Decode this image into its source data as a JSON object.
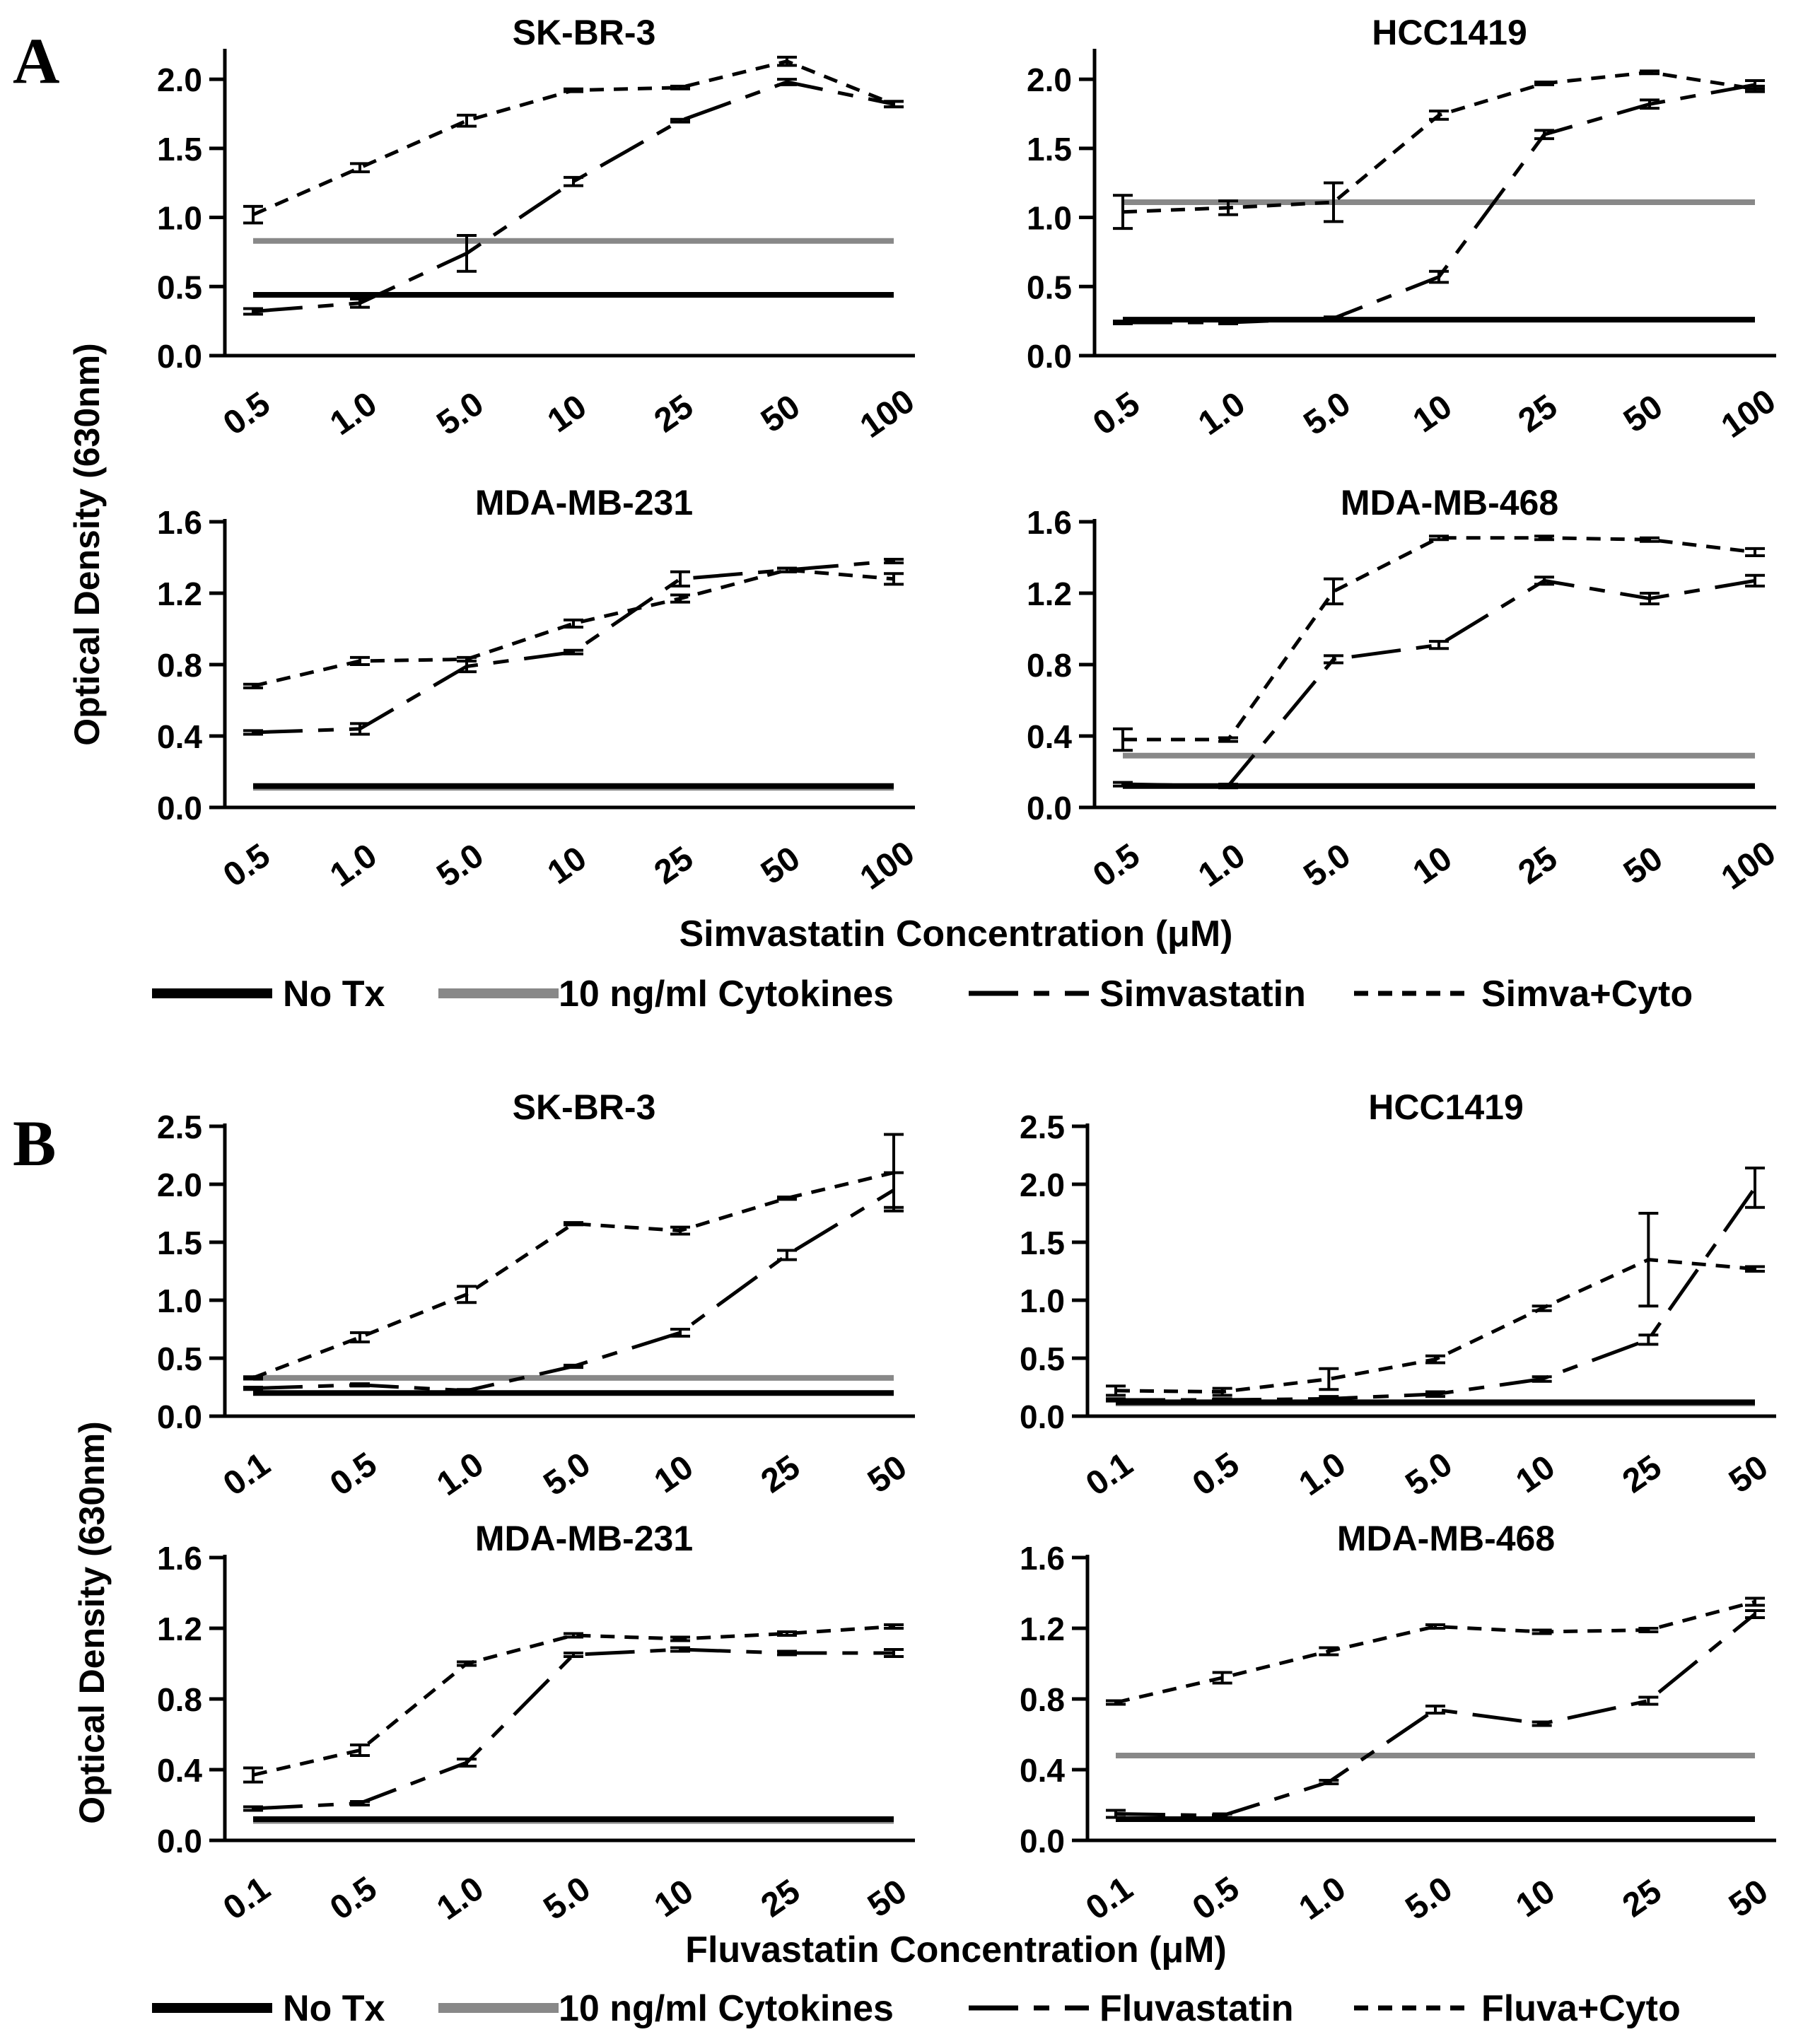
{
  "styles": {
    "No Tx": {
      "color": "#000000",
      "dash": "",
      "width": 8
    },
    "10 ng/ml Cytokines": {
      "color": "#888888",
      "dash": "",
      "width": 8
    },
    "Simvastatin": {
      "color": "#000000",
      "dash": "70,22,22,22",
      "width": 5
    },
    "Simva+Cyto": {
      "color": "#000000",
      "dash": "20,14",
      "width": 5
    },
    "Fluvastatin": {
      "color": "#000000",
      "dash": "70,22,22,22",
      "width": 5
    },
    "Fluva+Cyto": {
      "color": "#000000",
      "dash": "20,14",
      "width": 5
    }
  },
  "panels": {
    "A": {
      "letter": "A",
      "ylabel": "Optical Density (630nm)",
      "xlabel": "Simvastatin Concentration (μM)",
      "legend": [
        "No Tx",
        "10 ng/ml Cytokines",
        "Simvastatin",
        "Simva+Cyto"
      ]
    },
    "B": {
      "letter": "B",
      "ylabel": "Optical Density (630nm)",
      "xlabel": "Fluvastatin Concentration (μM)",
      "legend": [
        "No Tx",
        "10 ng/ml Cytokines",
        "Fluvastatin",
        "Fluva+Cyto"
      ]
    }
  },
  "chart_data": [
    {
      "type": "line",
      "panel": "A",
      "title": "SK-BR-3",
      "categories": [
        "0.5",
        "1.0",
        "5.0",
        "10",
        "25",
        "50",
        "100"
      ],
      "ylim": [
        0,
        2.2
      ],
      "yticks": [
        "0.0",
        "0.5",
        "1.0",
        "1.5",
        "2.0"
      ],
      "xlabel": "Simvastatin Concentration (μM)",
      "ylabel": "Optical Density (630nm)",
      "series": [
        {
          "name": "No Tx",
          "values": [
            0.44,
            0.44,
            0.44,
            0.44,
            0.44,
            0.44,
            0.44
          ]
        },
        {
          "name": "10 ng/ml Cytokines",
          "values": [
            0.83,
            0.83,
            0.83,
            0.83,
            0.83,
            0.83,
            0.83
          ]
        },
        {
          "name": "Simvastatin",
          "values": [
            0.32,
            0.38,
            0.74,
            1.26,
            1.7,
            1.98,
            1.82
          ],
          "errors": [
            0.02,
            0.03,
            0.13,
            0.03,
            0.01,
            0.02,
            0.02
          ]
        },
        {
          "name": "Simva+Cyto",
          "values": [
            1.02,
            1.36,
            1.7,
            1.92,
            1.94,
            2.13,
            1.82
          ],
          "errors": [
            0.06,
            0.03,
            0.04,
            0.01,
            0.01,
            0.03,
            0.02
          ]
        }
      ]
    },
    {
      "type": "line",
      "panel": "A",
      "title": "HCC1419",
      "categories": [
        "0.5",
        "1.0",
        "5.0",
        "10",
        "25",
        "50",
        "100"
      ],
      "ylim": [
        0,
        2.2
      ],
      "yticks": [
        "0.0",
        "0.5",
        "1.0",
        "1.5",
        "2.0"
      ],
      "xlabel": "Simvastatin Concentration (μM)",
      "ylabel": "Optical Density (630nm)",
      "series": [
        {
          "name": "No Tx",
          "values": [
            0.26,
            0.26,
            0.26,
            0.26,
            0.26,
            0.26,
            0.26
          ]
        },
        {
          "name": "10 ng/ml Cytokines",
          "values": [
            1.11,
            1.11,
            1.11,
            1.11,
            1.11,
            1.11,
            1.11
          ]
        },
        {
          "name": "Simvastatin",
          "values": [
            0.24,
            0.24,
            0.27,
            0.57,
            1.6,
            1.82,
            1.96
          ],
          "errors": [
            0.01,
            0.01,
            0.01,
            0.04,
            0.03,
            0.03,
            0.03
          ]
        },
        {
          "name": "Simva+Cyto",
          "values": [
            1.04,
            1.07,
            1.11,
            1.74,
            1.97,
            2.05,
            1.93
          ],
          "errors": [
            0.12,
            0.05,
            0.14,
            0.03,
            0.01,
            0.01,
            0.02
          ]
        }
      ]
    },
    {
      "type": "line",
      "panel": "A",
      "title": "MDA-MB-231",
      "categories": [
        "0.5",
        "1.0",
        "5.0",
        "10",
        "25",
        "50",
        "100"
      ],
      "ylim": [
        0,
        1.6
      ],
      "yticks": [
        "0.0",
        "0.4",
        "0.8",
        "1.2",
        "1.6"
      ],
      "xlabel": "Simvastatin Concentration (μM)",
      "ylabel": "Optical Density (630nm)",
      "series": [
        {
          "name": "No Tx",
          "values": [
            0.12,
            0.12,
            0.12,
            0.12,
            0.12,
            0.12,
            0.12
          ]
        },
        {
          "name": "10 ng/ml Cytokines",
          "values": [
            0.11,
            0.11,
            0.11,
            0.11,
            0.11,
            0.11,
            0.11
          ]
        },
        {
          "name": "Simvastatin",
          "values": [
            0.42,
            0.44,
            0.79,
            0.87,
            1.28,
            1.33,
            1.38
          ],
          "errors": [
            0.01,
            0.03,
            0.03,
            0.01,
            0.04,
            0.01,
            0.01
          ]
        },
        {
          "name": "Simva+Cyto",
          "values": [
            0.68,
            0.82,
            0.83,
            1.03,
            1.17,
            1.33,
            1.28
          ],
          "errors": [
            0.01,
            0.02,
            0.01,
            0.02,
            0.02,
            0.01,
            0.03
          ]
        }
      ]
    },
    {
      "type": "line",
      "panel": "A",
      "title": "MDA-MB-468",
      "categories": [
        "0.5",
        "1.0",
        "5.0",
        "10",
        "25",
        "50",
        "100"
      ],
      "ylim": [
        0,
        1.6
      ],
      "yticks": [
        "0.0",
        "0.4",
        "0.8",
        "1.2",
        "1.6"
      ],
      "xlabel": "Simvastatin Concentration (μM)",
      "ylabel": "Optical Density (630nm)",
      "series": [
        {
          "name": "No Tx",
          "values": [
            0.12,
            0.12,
            0.12,
            0.12,
            0.12,
            0.12,
            0.12
          ]
        },
        {
          "name": "10 ng/ml Cytokines",
          "values": [
            0.29,
            0.29,
            0.29,
            0.29,
            0.29,
            0.29,
            0.29
          ]
        },
        {
          "name": "Simvastatin",
          "values": [
            0.13,
            0.12,
            0.83,
            0.91,
            1.27,
            1.17,
            1.27
          ],
          "errors": [
            0.01,
            0.01,
            0.02,
            0.02,
            0.02,
            0.03,
            0.03
          ]
        },
        {
          "name": "Simva+Cyto",
          "values": [
            0.38,
            0.38,
            1.21,
            1.51,
            1.51,
            1.5,
            1.43
          ],
          "errors": [
            0.06,
            0.01,
            0.07,
            0.01,
            0.01,
            0.01,
            0.02
          ]
        }
      ]
    },
    {
      "type": "line",
      "panel": "B",
      "title": "SK-BR-3",
      "categories": [
        "0.1",
        "0.5",
        "1.0",
        "5.0",
        "10",
        "25",
        "50"
      ],
      "ylim": [
        0,
        2.5
      ],
      "yticks": [
        "0.0",
        "0.5",
        "1.0",
        "1.5",
        "2.0",
        "2.5"
      ],
      "xlabel": "Fluvastatin Concentration (μM)",
      "ylabel": "Optical Density (630nm)",
      "series": [
        {
          "name": "No Tx",
          "values": [
            0.2,
            0.2,
            0.2,
            0.2,
            0.2,
            0.2,
            0.2
          ]
        },
        {
          "name": "10 ng/ml Cytokines",
          "values": [
            0.33,
            0.33,
            0.33,
            0.33,
            0.33,
            0.33,
            0.33
          ]
        },
        {
          "name": "Fluvastatin",
          "values": [
            0.24,
            0.27,
            0.22,
            0.43,
            0.72,
            1.39,
            1.95
          ],
          "errors": [
            0.01,
            0.01,
            0.01,
            0.01,
            0.03,
            0.04,
            0.15
          ]
        },
        {
          "name": "Fluva+Cyto",
          "values": [
            0.33,
            0.68,
            1.05,
            1.66,
            1.6,
            1.88,
            2.1
          ],
          "errors": [
            0.01,
            0.04,
            0.07,
            0.01,
            0.03,
            0.01,
            0.33
          ]
        }
      ]
    },
    {
      "type": "line",
      "panel": "B",
      "title": "HCC1419",
      "categories": [
        "0.1",
        "0.5",
        "1.0",
        "5.0",
        "10",
        "25",
        "50"
      ],
      "ylim": [
        0,
        2.5
      ],
      "yticks": [
        "0.0",
        "0.5",
        "1.0",
        "1.5",
        "2.0",
        "2.5"
      ],
      "xlabel": "Fluvastatin Concentration (μM)",
      "ylabel": "Optical Density (630nm)",
      "series": [
        {
          "name": "No Tx",
          "values": [
            0.12,
            0.12,
            0.12,
            0.12,
            0.12,
            0.12,
            0.12
          ]
        },
        {
          "name": "10 ng/ml Cytokines",
          "values": [
            0.11,
            0.11,
            0.11,
            0.11,
            0.11,
            0.11,
            0.11
          ]
        },
        {
          "name": "Fluvastatin",
          "values": [
            0.14,
            0.14,
            0.15,
            0.19,
            0.32,
            0.66,
            1.97
          ],
          "errors": [
            0.01,
            0.01,
            0.02,
            0.02,
            0.02,
            0.04,
            0.17
          ]
        },
        {
          "name": "Fluva+Cyto",
          "values": [
            0.22,
            0.21,
            0.32,
            0.49,
            0.93,
            1.35,
            1.27
          ],
          "errors": [
            0.04,
            0.03,
            0.09,
            0.03,
            0.02,
            0.4,
            0.02
          ]
        }
      ]
    },
    {
      "type": "line",
      "panel": "B",
      "title": "MDA-MB-231",
      "categories": [
        "0.1",
        "0.5",
        "1.0",
        "5.0",
        "10",
        "25",
        "50"
      ],
      "ylim": [
        0,
        1.6
      ],
      "yticks": [
        "0.0",
        "0.4",
        "0.8",
        "1.2",
        "1.6"
      ],
      "xlabel": "Fluvastatin Concentration (μM)",
      "ylabel": "Optical Density (630nm)",
      "series": [
        {
          "name": "No Tx",
          "values": [
            0.12,
            0.12,
            0.12,
            0.12,
            0.12,
            0.12,
            0.12
          ]
        },
        {
          "name": "10 ng/ml Cytokines",
          "values": [
            0.11,
            0.11,
            0.11,
            0.11,
            0.11,
            0.11,
            0.11
          ]
        },
        {
          "name": "Fluvastatin",
          "values": [
            0.18,
            0.21,
            0.44,
            1.05,
            1.08,
            1.06,
            1.06
          ],
          "errors": [
            0.01,
            0.01,
            0.02,
            0.01,
            0.01,
            0.01,
            0.02
          ]
        },
        {
          "name": "Fluva+Cyto",
          "values": [
            0.37,
            0.51,
            1.0,
            1.16,
            1.14,
            1.17,
            1.21
          ],
          "errors": [
            0.04,
            0.03,
            0.01,
            0.01,
            0.01,
            0.01,
            0.01
          ]
        }
      ]
    },
    {
      "type": "line",
      "panel": "B",
      "title": "MDA-MB-468",
      "categories": [
        "0.1",
        "0.5",
        "1.0",
        "5.0",
        "10",
        "25",
        "50"
      ],
      "ylim": [
        0,
        1.6
      ],
      "yticks": [
        "0.0",
        "0.4",
        "0.8",
        "1.2",
        "1.6"
      ],
      "xlabel": "Fluvastatin Concentration (μM)",
      "ylabel": "Optical Density (630nm)",
      "series": [
        {
          "name": "No Tx",
          "values": [
            0.12,
            0.12,
            0.12,
            0.12,
            0.12,
            0.12,
            0.12
          ]
        },
        {
          "name": "10 ng/ml Cytokines",
          "values": [
            0.48,
            0.48,
            0.48,
            0.48,
            0.48,
            0.48,
            0.48
          ]
        },
        {
          "name": "Fluvastatin",
          "values": [
            0.15,
            0.14,
            0.33,
            0.74,
            0.66,
            0.79,
            1.28
          ],
          "errors": [
            0.02,
            0.01,
            0.01,
            0.02,
            0.01,
            0.02,
            0.02
          ]
        },
        {
          "name": "Fluva+Cyto",
          "values": [
            0.78,
            0.92,
            1.07,
            1.21,
            1.18,
            1.19,
            1.35
          ],
          "errors": [
            0.01,
            0.03,
            0.02,
            0.01,
            0.01,
            0.01,
            0.02
          ]
        }
      ]
    }
  ]
}
